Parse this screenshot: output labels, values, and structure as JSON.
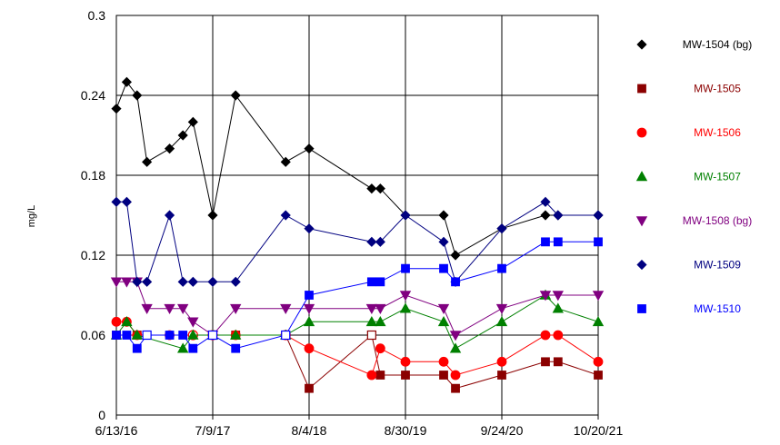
{
  "chart_data": {
    "type": "line",
    "ylabel": "mg/L",
    "ylim": [
      0,
      0.3
    ],
    "yticks": [
      "0",
      "0.06",
      "0.12",
      "0.18",
      "0.24",
      "0.3"
    ],
    "xlim": [
      "2016-06-13",
      "2021-10-20"
    ],
    "xticks": [
      {
        "date": "2016-06-13",
        "label": "6/13/16"
      },
      {
        "date": "2017-07-09",
        "label": "7/9/17"
      },
      {
        "date": "2018-08-04",
        "label": "8/4/18"
      },
      {
        "date": "2019-08-30",
        "label": "8/30/19"
      },
      {
        "date": "2020-09-24",
        "label": "9/24/20"
      },
      {
        "date": "2021-10-20",
        "label": "10/20/21"
      }
    ],
    "grid": true,
    "legend_position": "right",
    "series": [
      {
        "name": "MW-1504 (bg)",
        "color": "#000000",
        "marker": "diamond",
        "points": [
          [
            "2016-06-13",
            0.23
          ],
          [
            "2016-07-25",
            0.25
          ],
          [
            "2016-09-05",
            0.24
          ],
          [
            "2016-10-15",
            0.19
          ],
          [
            "2017-01-15",
            0.2
          ],
          [
            "2017-03-10",
            0.21
          ],
          [
            "2017-04-20",
            0.22
          ],
          [
            "2017-07-09",
            0.15
          ],
          [
            "2017-10-10",
            0.24
          ],
          [
            "2018-05-01",
            0.19
          ],
          [
            "2018-08-04",
            0.2
          ],
          [
            "2019-04-15",
            0.17
          ],
          [
            "2019-05-20",
            0.17
          ],
          [
            "2019-08-30",
            0.15
          ],
          [
            "2020-02-01",
            0.15
          ],
          [
            "2020-03-20",
            0.12
          ],
          [
            "2020-09-24",
            0.14
          ],
          [
            "2021-03-20",
            0.15
          ],
          [
            "2021-05-10",
            0.15
          ],
          [
            "2021-10-20",
            0.15
          ]
        ]
      },
      {
        "name": "MW-1505",
        "color": "#8b0000",
        "marker": "square",
        "points": [
          [
            "2016-06-13",
            0.06
          ],
          [
            "2016-09-05",
            0.06
          ],
          [
            "2017-07-09",
            0.06
          ],
          [
            "2017-10-10",
            0.06
          ],
          [
            "2018-05-01",
            0.06
          ],
          [
            "2018-08-04",
            0.02
          ],
          [
            "2019-04-15",
            0.06,
            "open"
          ],
          [
            "2019-05-20",
            0.03
          ],
          [
            "2019-08-30",
            0.03
          ],
          [
            "2020-02-01",
            0.03
          ],
          [
            "2020-03-20",
            0.02
          ],
          [
            "2020-09-24",
            0.03
          ],
          [
            "2021-03-20",
            0.04
          ],
          [
            "2021-05-10",
            0.04
          ],
          [
            "2021-10-20",
            0.03
          ]
        ]
      },
      {
        "name": "MW-1506",
        "color": "#ff0000",
        "marker": "circle",
        "points": [
          [
            "2016-06-13",
            0.07
          ],
          [
            "2016-07-25",
            0.07
          ],
          [
            "2016-09-05",
            0.06
          ],
          [
            "2017-01-15",
            0.06
          ],
          [
            "2017-04-20",
            0.06,
            "open"
          ],
          [
            "2017-07-09",
            0.06,
            "open"
          ],
          [
            "2017-10-10",
            0.06
          ],
          [
            "2018-05-01",
            0.06,
            "open"
          ],
          [
            "2018-08-04",
            0.05
          ],
          [
            "2019-04-15",
            0.03
          ],
          [
            "2019-05-20",
            0.05
          ],
          [
            "2019-08-30",
            0.04
          ],
          [
            "2020-02-01",
            0.04
          ],
          [
            "2020-03-20",
            0.03
          ],
          [
            "2020-09-24",
            0.04
          ],
          [
            "2021-03-20",
            0.06
          ],
          [
            "2021-05-10",
            0.06
          ],
          [
            "2021-10-20",
            0.04
          ]
        ]
      },
      {
        "name": "MW-1507",
        "color": "#008000",
        "marker": "triangle-up",
        "points": [
          [
            "2016-06-13",
            0.06
          ],
          [
            "2016-07-25",
            0.07
          ],
          [
            "2016-09-05",
            0.06
          ],
          [
            "2017-03-10",
            0.05
          ],
          [
            "2017-04-20",
            0.06
          ],
          [
            "2017-07-09",
            0.06
          ],
          [
            "2017-10-10",
            0.06
          ],
          [
            "2018-05-01",
            0.06
          ],
          [
            "2018-08-04",
            0.07
          ],
          [
            "2019-04-15",
            0.07
          ],
          [
            "2019-05-20",
            0.07
          ],
          [
            "2019-08-30",
            0.08
          ],
          [
            "2020-02-01",
            0.07
          ],
          [
            "2020-03-20",
            0.05
          ],
          [
            "2020-09-24",
            0.07
          ],
          [
            "2021-03-20",
            0.09
          ],
          [
            "2021-05-10",
            0.08
          ],
          [
            "2021-10-20",
            0.07
          ]
        ]
      },
      {
        "name": "MW-1508 (bg)",
        "color": "#800080",
        "marker": "triangle-down",
        "points": [
          [
            "2016-06-13",
            0.1
          ],
          [
            "2016-07-25",
            0.1
          ],
          [
            "2016-09-05",
            0.1
          ],
          [
            "2016-10-15",
            0.08
          ],
          [
            "2017-01-15",
            0.08
          ],
          [
            "2017-03-10",
            0.08
          ],
          [
            "2017-04-20",
            0.07
          ],
          [
            "2017-07-09",
            0.06
          ],
          [
            "2017-10-10",
            0.08
          ],
          [
            "2018-05-01",
            0.08
          ],
          [
            "2018-08-04",
            0.08
          ],
          [
            "2019-04-15",
            0.08
          ],
          [
            "2019-05-20",
            0.08
          ],
          [
            "2019-08-30",
            0.09
          ],
          [
            "2020-02-01",
            0.08
          ],
          [
            "2020-03-20",
            0.06
          ],
          [
            "2020-09-24",
            0.08
          ],
          [
            "2021-03-20",
            0.09
          ],
          [
            "2021-05-10",
            0.09
          ],
          [
            "2021-10-20",
            0.09
          ]
        ]
      },
      {
        "name": "MW-1509",
        "color": "#000080",
        "marker": "diamond",
        "points": [
          [
            "2016-06-13",
            0.16
          ],
          [
            "2016-07-25",
            0.16
          ],
          [
            "2016-09-05",
            0.1
          ],
          [
            "2016-10-15",
            0.1
          ],
          [
            "2017-01-15",
            0.15
          ],
          [
            "2017-03-10",
            0.1
          ],
          [
            "2017-04-20",
            0.1
          ],
          [
            "2017-07-09",
            0.1
          ],
          [
            "2017-10-10",
            0.1
          ],
          [
            "2018-05-01",
            0.15
          ],
          [
            "2018-08-04",
            0.14
          ],
          [
            "2019-04-15",
            0.13
          ],
          [
            "2019-05-20",
            0.13
          ],
          [
            "2019-08-30",
            0.15
          ],
          [
            "2020-02-01",
            0.13
          ],
          [
            "2020-03-20",
            0.1
          ],
          [
            "2020-09-24",
            0.14
          ],
          [
            "2021-03-20",
            0.16
          ],
          [
            "2021-05-10",
            0.15
          ],
          [
            "2021-10-20",
            0.15
          ]
        ]
      },
      {
        "name": "MW-1510",
        "color": "#0000ff",
        "marker": "square",
        "points": [
          [
            "2016-06-13",
            0.06
          ],
          [
            "2016-07-25",
            0.06
          ],
          [
            "2016-09-05",
            0.05
          ],
          [
            "2016-10-15",
            0.06,
            "open"
          ],
          [
            "2017-01-15",
            0.06
          ],
          [
            "2017-03-10",
            0.06
          ],
          [
            "2017-04-20",
            0.05
          ],
          [
            "2017-07-09",
            0.06,
            "open"
          ],
          [
            "2017-10-10",
            0.05
          ],
          [
            "2018-05-01",
            0.06,
            "open"
          ],
          [
            "2018-08-04",
            0.09
          ],
          [
            "2019-04-15",
            0.1
          ],
          [
            "2019-05-20",
            0.1
          ],
          [
            "2019-08-30",
            0.11
          ],
          [
            "2020-02-01",
            0.11
          ],
          [
            "2020-03-20",
            0.1
          ],
          [
            "2020-09-24",
            0.11
          ],
          [
            "2021-03-20",
            0.13
          ],
          [
            "2021-05-10",
            0.13
          ],
          [
            "2021-10-20",
            0.13
          ]
        ]
      }
    ]
  }
}
